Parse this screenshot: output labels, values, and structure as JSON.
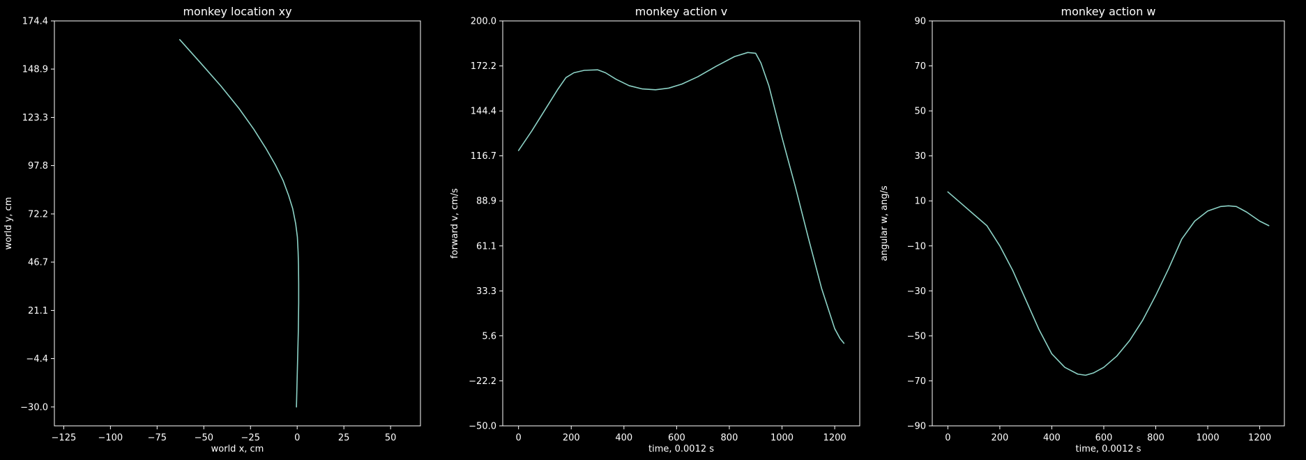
{
  "colors": {
    "background": "#000000",
    "foreground": "#ffffff",
    "series": "#8dd3c7"
  },
  "chart_data": [
    {
      "type": "line",
      "title": "monkey location xy",
      "xlabel": "world x, cm",
      "ylabel": "world y, cm",
      "xlim": [
        -130,
        66
      ],
      "ylim": [
        -40,
        174.4
      ],
      "xticks": [
        -125,
        -100,
        -75,
        -50,
        -25,
        0,
        25,
        50
      ],
      "xtick_labels": [
        "−125",
        "−100",
        "−75",
        "−50",
        "−25",
        "0",
        "25",
        "50"
      ],
      "yticks": [
        -30.0,
        -4.4,
        21.1,
        46.7,
        72.2,
        97.8,
        123.3,
        148.9,
        174.4
      ],
      "ytick_labels": [
        "−30.0",
        "−4.4",
        "21.1",
        "46.7",
        "72.2",
        "97.8",
        "123.3",
        "148.9",
        "174.4"
      ],
      "grid": false,
      "series": [
        {
          "x": [
            -0.4,
            0.1,
            0.6,
            0.8,
            0.8,
            0.7,
            0.5,
            0.1,
            -0.8,
            -2.4,
            -4.6,
            -7.6,
            -11.6,
            -16.8,
            -23.2,
            -31.1,
            -40.9,
            -51.6,
            -62.9
          ],
          "y": [
            -30.0,
            -10.0,
            10.0,
            25.0,
            35.0,
            45.0,
            52.0,
            60.0,
            67.0,
            75.0,
            82.0,
            90.0,
            98.0,
            107.0,
            117.0,
            128.0,
            140.0,
            152.0,
            164.5
          ]
        }
      ]
    },
    {
      "type": "line",
      "title": "monkey action v",
      "xlabel": "time, 0.0012 s",
      "ylabel": "forward v, cm/s",
      "xlim": [
        -60,
        1295
      ],
      "ylim": [
        -50.0,
        200.0
      ],
      "xticks": [
        0,
        200,
        400,
        600,
        800,
        1000,
        1200
      ],
      "xtick_labels": [
        "0",
        "200",
        "400",
        "600",
        "800",
        "1000",
        "1200"
      ],
      "yticks": [
        -50.0,
        -22.2,
        5.6,
        33.3,
        61.1,
        88.9,
        116.7,
        144.4,
        172.2,
        200.0
      ],
      "ytick_labels": [
        "−50.0",
        "−22.2",
        "5.6",
        "33.3",
        "61.1",
        "88.9",
        "116.7",
        "144.4",
        "172.2",
        "200.0"
      ],
      "grid": false,
      "series": [
        {
          "x": [
            0,
            50,
            100,
            150,
            180,
            210,
            250,
            300,
            330,
            370,
            420,
            470,
            520,
            570,
            620,
            680,
            750,
            820,
            870,
            900,
            920,
            950,
            1000,
            1050,
            1100,
            1150,
            1200,
            1220,
            1235
          ],
          "y": [
            120,
            132,
            145,
            158,
            165,
            168,
            169.5,
            169.8,
            168,
            164,
            160,
            158,
            157.5,
            158.5,
            161,
            165.5,
            172,
            178,
            180.5,
            180,
            174,
            160,
            128,
            98,
            66,
            35,
            10,
            4,
            1
          ]
        }
      ]
    },
    {
      "type": "line",
      "title": "monkey action w",
      "xlabel": "time, 0.0012 s",
      "ylabel": "angular w, ang/s",
      "xlim": [
        -60,
        1295
      ],
      "ylim": [
        -90,
        90
      ],
      "xticks": [
        0,
        200,
        400,
        600,
        800,
        1000,
        1200
      ],
      "xtick_labels": [
        "0",
        "200",
        "400",
        "600",
        "800",
        "1000",
        "1200"
      ],
      "yticks": [
        -90,
        -70,
        -50,
        -30,
        -10,
        10,
        30,
        50,
        70,
        90
      ],
      "ytick_labels": [
        "−90",
        "−70",
        "−50",
        "−30",
        "−10",
        "10",
        "30",
        "50",
        "70",
        "90"
      ],
      "grid": false,
      "series": [
        {
          "x": [
            0,
            50,
            100,
            150,
            200,
            250,
            300,
            350,
            400,
            450,
            500,
            530,
            560,
            600,
            650,
            700,
            750,
            800,
            850,
            900,
            950,
            1000,
            1050,
            1080,
            1110,
            1150,
            1200,
            1235
          ],
          "y": [
            14,
            9,
            4,
            -1,
            -10,
            -21,
            -34,
            -47,
            -58,
            -64,
            -67,
            -67.5,
            -66.5,
            -64,
            -59,
            -52,
            -43,
            -32,
            -20,
            -7,
            1,
            5.5,
            7.5,
            7.8,
            7.5,
            5,
            1,
            -1
          ]
        }
      ]
    }
  ]
}
